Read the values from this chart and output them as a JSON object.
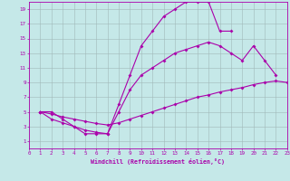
{
  "xlabel": "Windchill (Refroidissement éolien,°C)",
  "xlim": [
    0,
    23
  ],
  "ylim": [
    0,
    20
  ],
  "xticks": [
    0,
    1,
    2,
    3,
    4,
    5,
    6,
    7,
    8,
    9,
    10,
    11,
    12,
    13,
    14,
    15,
    16,
    17,
    18,
    19,
    20,
    21,
    22,
    23
  ],
  "yticks": [
    1,
    3,
    5,
    7,
    9,
    11,
    13,
    15,
    17,
    19
  ],
  "background_color": "#c5e8e8",
  "line_color": "#aa00aa",
  "grid_color": "#a0b8b8",
  "line1_x": [
    1,
    2,
    3,
    4,
    5,
    6,
    7,
    8,
    9,
    10,
    11,
    12,
    13,
    14,
    15,
    16,
    17,
    18
  ],
  "line1_y": [
    5,
    5,
    4,
    3,
    2,
    2,
    2,
    6,
    10,
    14,
    16,
    18,
    19,
    20,
    20,
    20,
    16,
    16
  ],
  "line2_x": [
    1,
    2,
    3,
    4,
    5,
    6,
    7,
    8,
    9,
    10,
    11,
    12,
    13,
    14,
    15,
    16,
    17,
    18,
    19,
    20,
    21,
    22
  ],
  "line2_y": [
    5,
    4,
    3.5,
    3,
    2.5,
    2.2,
    2,
    5,
    8,
    10,
    11,
    12,
    13,
    13.5,
    14,
    14.5,
    14,
    13,
    12,
    14,
    12,
    10
  ],
  "line3_x": [
    1,
    2,
    3,
    4,
    5,
    6,
    7,
    8,
    9,
    10,
    11,
    12,
    13,
    14,
    15,
    16,
    17,
    18,
    19,
    20,
    21,
    22,
    23
  ],
  "line3_y": [
    5,
    4.7,
    4.3,
    4.0,
    3.7,
    3.4,
    3.2,
    3.5,
    4.0,
    4.5,
    5.0,
    5.5,
    6.0,
    6.5,
    7.0,
    7.3,
    7.7,
    8.0,
    8.3,
    8.7,
    9.0,
    9.2,
    9.0
  ]
}
